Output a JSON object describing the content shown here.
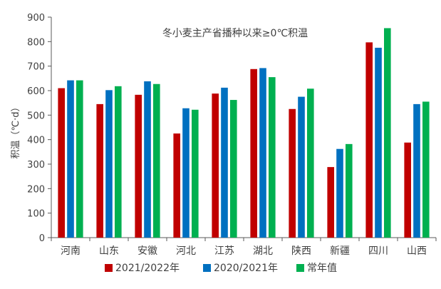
{
  "chart_data": {
    "type": "bar",
    "title": "冬小麦主产省播种以来≥0℃积温",
    "ylabel": "积温（℃·d）",
    "xlabel": "",
    "ylim": [
      0,
      900
    ],
    "yticks": [
      0,
      100,
      200,
      300,
      400,
      500,
      600,
      700,
      800,
      900
    ],
    "grid": false,
    "legend_position": "bottom",
    "categories": [
      "河南",
      "山东",
      "安徽",
      "河北",
      "江苏",
      "湖北",
      "陕西",
      "新疆",
      "四川",
      "山西"
    ],
    "series": [
      {
        "name": "2021/2022年",
        "color": "#c00000",
        "values": [
          610,
          545,
          583,
          425,
          588,
          688,
          525,
          288,
          797,
          388
        ]
      },
      {
        "name": "2020/2021年",
        "color": "#0070c0",
        "values": [
          642,
          602,
          638,
          528,
          612,
          692,
          575,
          362,
          775,
          545
        ]
      },
      {
        "name": "常年值",
        "color": "#00b050",
        "values": [
          642,
          618,
          627,
          522,
          562,
          655,
          608,
          382,
          855,
          555
        ]
      }
    ]
  }
}
